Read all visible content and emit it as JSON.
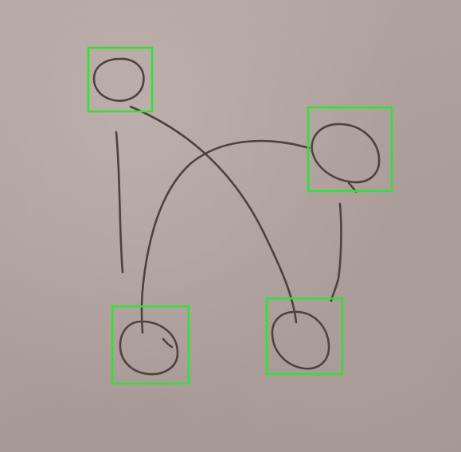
{
  "diagram": {
    "type": "hand-drawn graph sketch",
    "ink_color": "#4e423f",
    "paper_color": "#b0a29f",
    "detection_box_color": "#2ee52e",
    "nodes": [
      {
        "id": "node-a",
        "shape": "circle",
        "detected": true
      },
      {
        "id": "node-b",
        "shape": "circle",
        "detected": true
      },
      {
        "id": "node-c",
        "shape": "circle",
        "detected": true
      },
      {
        "id": "node-d",
        "shape": "circle",
        "detected": true
      }
    ],
    "edges": [
      {
        "from": "node-a",
        "to": "node-d"
      },
      {
        "from": "node-b",
        "to": "node-c"
      },
      {
        "from": "node-b",
        "to": "node-d"
      }
    ],
    "stray_strokes": 1
  }
}
